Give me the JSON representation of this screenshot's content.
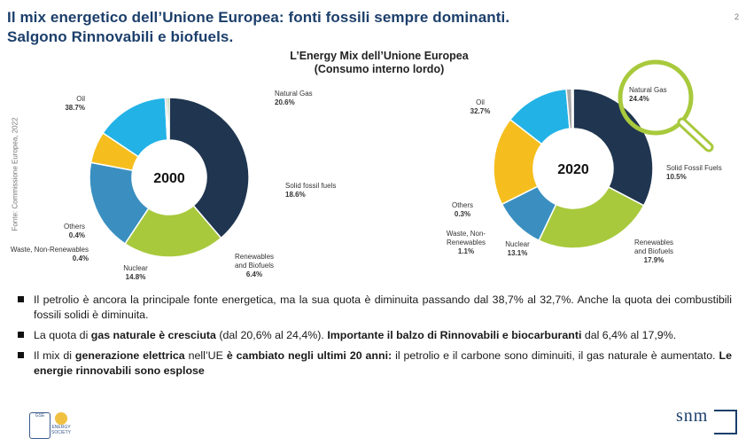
{
  "slide": {
    "title_line1": "Il mix energetico dell’Unione Europea: fonti fossili sempre dominanti.",
    "title_line2": "Salgono Rinnovabili e biofuels.",
    "page_number": "2",
    "source": "Fonte: Commissione Europea, 2022"
  },
  "chart_header": {
    "line1": "L’Energy Mix dell’Unione Europea",
    "line2": "(Consumo interno lordo)"
  },
  "chart_data": [
    {
      "type": "pie",
      "title": "2000",
      "categories": [
        "Oil",
        "Natural Gas",
        "Solid fossil fuels",
        "Renewables and Biofuels",
        "Nuclear",
        "Waste, Non-Renewables",
        "Others"
      ],
      "values": [
        38.7,
        20.6,
        18.6,
        6.4,
        14.8,
        0.4,
        0.4
      ],
      "value_labels": [
        "38.7%",
        "20.6%",
        "18.6%",
        "6.4%",
        "14.8%",
        "0.4%",
        "0.4%"
      ],
      "label_lines": [
        [
          "Oil"
        ],
        [
          "Natural Gas"
        ],
        [
          "Solid fossil fuels"
        ],
        [
          "Renewables",
          "and Biofuels"
        ],
        [
          "Nuclear"
        ],
        [
          "Waste, Non-Renewables"
        ],
        [
          "Others"
        ]
      ],
      "colors": [
        "#1f3550",
        "#a8c93c",
        "#3a8fc0",
        "#f5be1e",
        "#22b2e6",
        "#a9a9a9",
        "#6e9c3a"
      ],
      "center_label": "2000"
    },
    {
      "type": "pie",
      "title": "2020",
      "categories": [
        "Oil",
        "Natural Gas",
        "Solid Fossil Fuels",
        "Renewables and Biofuels",
        "Nuclear",
        "Waste, Non-Renewables",
        "Others"
      ],
      "values": [
        32.7,
        24.4,
        10.5,
        17.9,
        13.1,
        1.1,
        0.3
      ],
      "value_labels": [
        "32.7%",
        "24.4%",
        "10.5%",
        "17.9%",
        "13.1%",
        "1.1%",
        "0.3%"
      ],
      "label_lines": [
        [
          "Oil"
        ],
        [
          "Natural Gas"
        ],
        [
          "Solid Fossil Fuels"
        ],
        [
          "Renewables",
          "and Biofuels"
        ],
        [
          "Nuclear"
        ],
        [
          "Waste, Non-",
          "Renewables"
        ],
        [
          "Others"
        ]
      ],
      "colors": [
        "#1f3550",
        "#a8c93c",
        "#3a8fc0",
        "#f5be1e",
        "#22b2e6",
        "#a9a9a9",
        "#6e9c3a"
      ],
      "center_label": "2020"
    }
  ],
  "bullets": {
    "b1": "Il petrolio è ancora la principale fonte energetica, ma la sua quota è diminuita passando dal 38,7% al 32,7%. Anche la quota dei combustibili fossili solidi è diminuita.",
    "b2_part1": "La quota di ",
    "b2_bold1": "gas naturale è cresciuta",
    "b2_part2": " (dal 20,6% al 24,4%). ",
    "b2_bold2": "Importante il balzo di Rinnovabili e biocarburanti",
    "b2_part3": " dal 6,4% al 17,9%.",
    "b3_part1": "Il mix di ",
    "b3_bold1": "generazione elettrica",
    "b3_part2": " nell’UE ",
    "b3_bold2": "è cambiato negli ultimi 20 anni:",
    "b3_part3": " il petrolio e il carbone sono diminuiti, il gas naturale è aumentato. ",
    "b3_bold3": "Le energie rinnovabili sono esplose"
  },
  "footer": {
    "logo1_text": "GSE",
    "logo2_text": "ENERGY SOCIETY",
    "brand": "snm"
  },
  "colors": {
    "accent": "#1c3f6b",
    "magnifier": "#a8c93c"
  }
}
